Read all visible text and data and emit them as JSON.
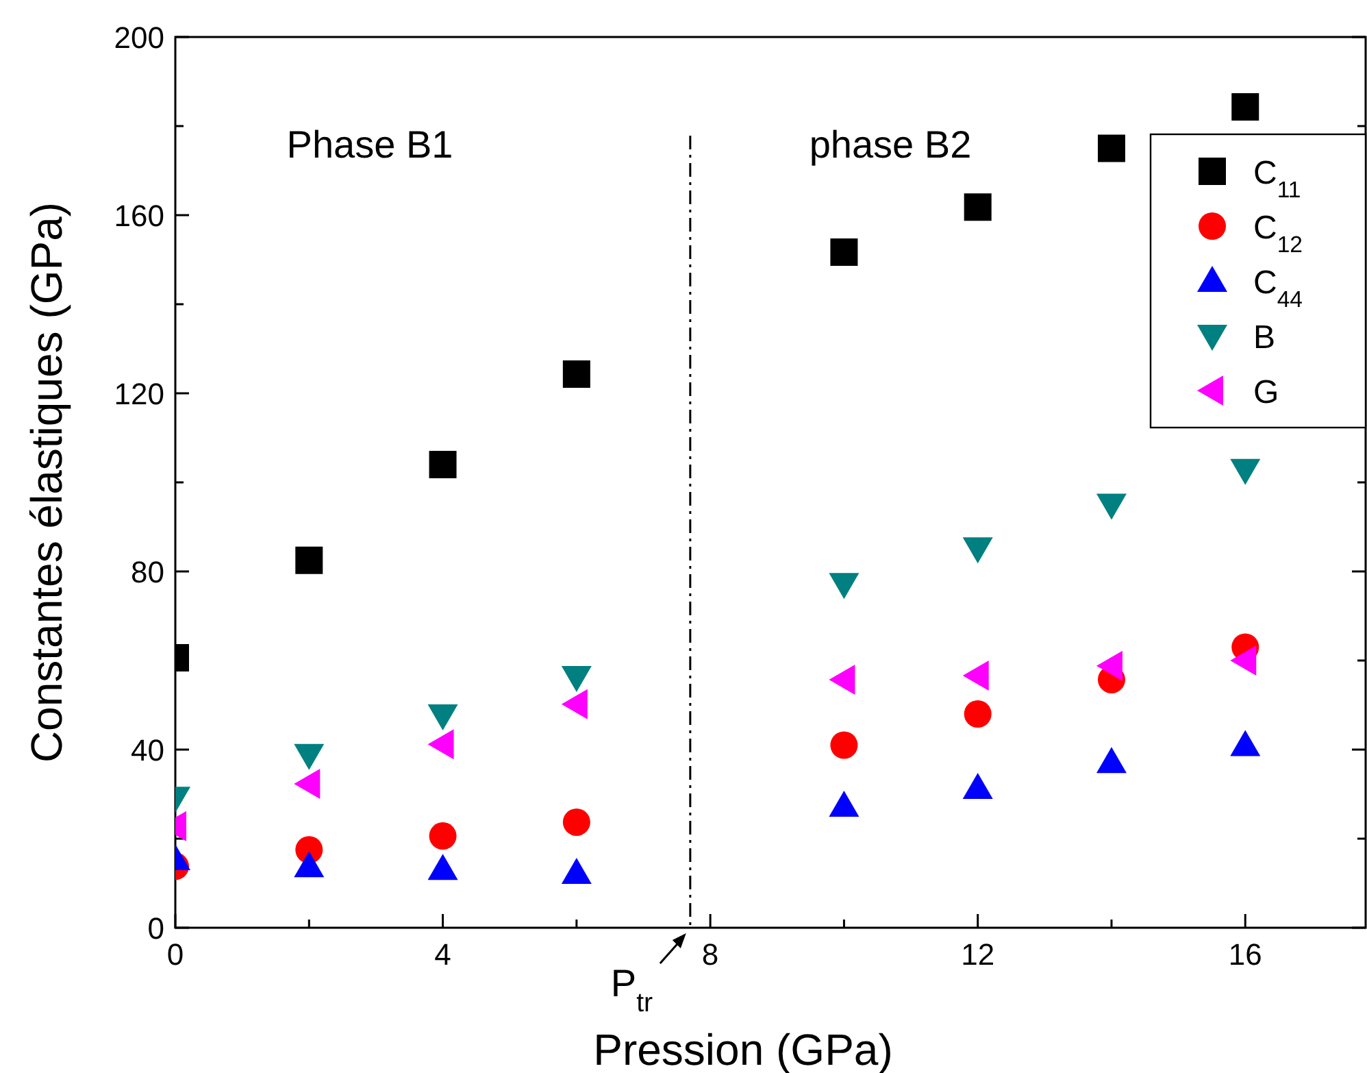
{
  "chart_data": {
    "type": "scatter",
    "xlabel": "Pression (GPa)",
    "ylabel": "Constantes élastiques (GPa)",
    "x": [
      0,
      2,
      4,
      6,
      10,
      12,
      14,
      16
    ],
    "xlim": [
      0,
      17.8
    ],
    "xticks": [
      0,
      {
        "value": 2,
        "label": null
      },
      4,
      {
        "value": 6,
        "label": null
      },
      8,
      {
        "value": 10,
        "label": null
      },
      12,
      {
        "value": 14,
        "label": null
      },
      16
    ],
    "ylim": [
      0,
      200
    ],
    "yticks": [
      0,
      {
        "value": 20,
        "label": null
      },
      40,
      {
        "value": 60,
        "label": null
      },
      80,
      {
        "value": 100,
        "label": null
      },
      120,
      {
        "value": 140,
        "label": null
      },
      160,
      {
        "value": 180,
        "label": null
      },
      200
    ],
    "grid": false,
    "legend": "top right",
    "series": [
      {
        "name": "C$_{11}$",
        "color": "#000000",
        "marker": "square",
        "values": [
          60.6,
          82.5,
          104,
          124.3,
          151.7,
          161.8,
          175,
          184.3
        ]
      },
      {
        "name": "C$_{12}$",
        "color": "#ff0000",
        "marker": "circle",
        "values": [
          13.8,
          17.5,
          20.6,
          23.7,
          41,
          48,
          55.7,
          63
        ]
      },
      {
        "name": "C$_{44}$",
        "color": "#0000ff",
        "marker": "triangle",
        "values": [
          15.4,
          13.8,
          13.2,
          12.3,
          27.4,
          31.4,
          37.2,
          41
        ]
      },
      {
        "name": "B",
        "color": "#008080",
        "marker": "triangle-down",
        "values": [
          29.2,
          38.8,
          47.7,
          56.3,
          77.2,
          85.2,
          95,
          102.8
        ]
      },
      {
        "name": "G",
        "color": "#ff00ff",
        "marker": "triangle-left",
        "values": [
          22.8,
          32.3,
          41.2,
          50.2,
          55.7,
          56.6,
          58.8,
          60
        ]
      }
    ],
    "ref_lines": [
      {
        "axis": "x",
        "value": 7.7,
        "label": "P$_{tr}$",
        "line_style": "dashdot",
        "color": "#000000"
      }
    ],
    "annotations": [
      "Phase B1",
      "phase B2"
    ]
  }
}
